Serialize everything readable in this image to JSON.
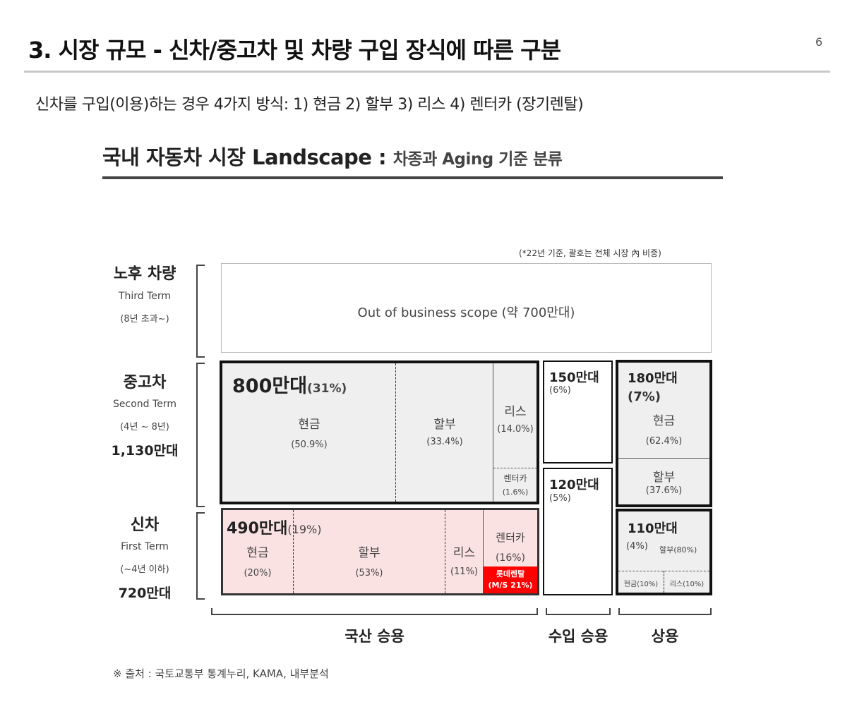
{
  "slide": {
    "title": "3. 시장 규모 - 신차/중고차 및 차량 구입 장식에 따른 구분",
    "page": "6",
    "subtitle": "신차를 구입(이용)하는 경우 4가지 방식:  1) 현금 2) 할부 3) 리스 4) 렌터카 (장기렌탈)"
  },
  "chart": {
    "heading": "국내 자동차 시장 Landscape :",
    "heading_sub": "차종과 Aging 기준 분류",
    "note": "(*22년 기준, 괄호는 전체 시장 內 비중)",
    "source": "※ 출처 : 국토교통부 통계누리, KAMA, 내부분석"
  },
  "rows": {
    "old": {
      "title": "노후 차량",
      "en": "Third Term",
      "range": "(8년 초과~)"
    },
    "used": {
      "title": "중고차",
      "en": "Second Term",
      "range": "(4년 ~ 8년)",
      "total": "1,130만대"
    },
    "new": {
      "title": "신차",
      "en": "First Term",
      "range": "(~4년 이하)",
      "total": "720만대"
    }
  },
  "old_box": {
    "text": "Out of business scope (약 700만대)"
  },
  "used_domestic": {
    "total": "800만대",
    "share": "(31%)",
    "cash": "현금",
    "cash_pct": "(50.9%)",
    "install": "할부",
    "install_pct": "(33.4%)",
    "lease": "리스",
    "lease_pct": "(14.0%)",
    "rent": "렌터카",
    "rent_pct": "(1.6%)"
  },
  "used_import": {
    "total": "150만대",
    "share": "(6%)"
  },
  "used_commercial": {
    "total": "180만대",
    "share": "(7%)",
    "cash": "현금",
    "cash_pct": "(62.4%)",
    "install": "할부",
    "install_pct": "(37.6%)"
  },
  "new_domestic": {
    "total": "490만대",
    "share": "(19%)",
    "cash": "현금",
    "cash_pct": "(20%)",
    "install": "할부",
    "install_pct": "(53%)",
    "lease": "리스",
    "lease_pct": "(11%)",
    "rent": "렌터카",
    "rent_pct": "(16%)",
    "lotte": "롯데렌탈",
    "lotte_ms": "(M/S 21%)"
  },
  "new_import": {
    "total": "120만대",
    "share": "(5%)"
  },
  "new_commercial": {
    "total": "110만대",
    "share": "(4%)",
    "install": "할부(80%)",
    "cash": "현금(10%)",
    "lease": "리스(10%)"
  },
  "categories": {
    "domestic": "국산 승용",
    "import": "수입 승용",
    "commercial": "상용"
  },
  "colors": {
    "used_fill": "#efefef",
    "new_fill": "#fbe2e2",
    "lotte_red": "#ff0000"
  }
}
